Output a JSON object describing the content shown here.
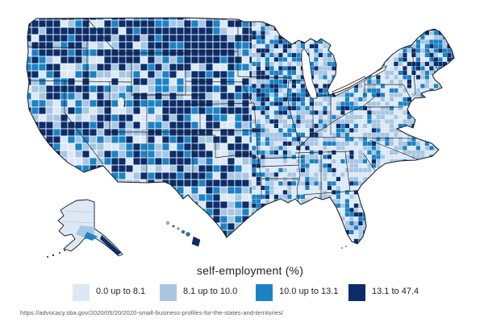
{
  "page": {
    "background": "#ffffff"
  },
  "map": {
    "description": "U.S. county-level choropleth map of self-employment rate",
    "insets": [
      "Alaska",
      "Hawaii"
    ]
  },
  "legend": {
    "title": "self-employment (%)",
    "items": [
      {
        "label": "0.0 up to 8.1",
        "color": "#dbe8f5"
      },
      {
        "label": "8.1 up to 10.0",
        "color": "#a8c6e2"
      },
      {
        "label": "10.0 up to 13.1",
        "color": "#1b83c5"
      },
      {
        "label": "13.1 to 47.4",
        "color": "#0b2d6a"
      }
    ]
  },
  "source_url": "https://advocacy.sba.gov/2020/05/20/2020-small-business-profiles-for-the-states-and-territories/",
  "chart_data": {
    "type": "choropleth",
    "variable": "self-employment (%)",
    "region": "United States, by county",
    "bins": [
      {
        "range": "0.0 up to 8.1",
        "color": "#dbe8f5"
      },
      {
        "range": "8.1 up to 10.0",
        "color": "#a8c6e2"
      },
      {
        "range": "10.0 up to 13.1",
        "color": "#1b83c5"
      },
      {
        "range": "13.1 to 47.4",
        "color": "#0b2d6a"
      }
    ],
    "min": 0.0,
    "max": 47.4,
    "legend_position": "bottom"
  }
}
